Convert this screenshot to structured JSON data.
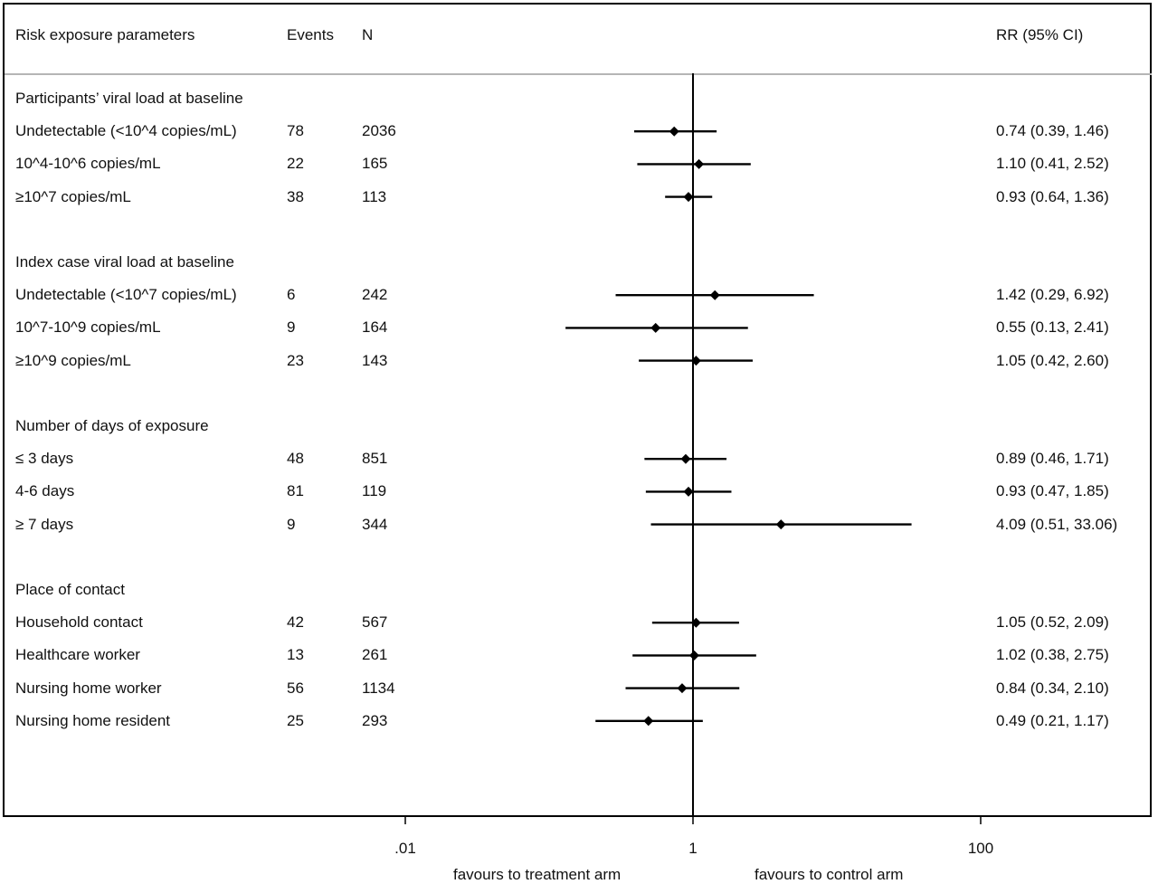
{
  "chart_data": {
    "type": "forest",
    "headers": {
      "label": "Risk exposure parameters",
      "events": "Events",
      "n": "N",
      "rr": "RR (95% CI)"
    },
    "groups": [
      {
        "title": "Participants’ viral load at baseline",
        "rows": [
          {
            "label": "Undetectable (<10^4 copies/mL)",
            "events": "78",
            "n": "2036",
            "rr_text": "0.74 (0.39, 1.46)",
            "rr": 0.74,
            "lo": 0.39,
            "hi": 1.46
          },
          {
            "label": "10^4-10^6 copies/mL",
            "events": "22",
            "n": "165",
            "rr_text": "1.10 (0.41, 2.52)",
            "rr": 1.1,
            "lo": 0.41,
            "hi": 2.52
          },
          {
            "label": "≥10^7 copies/mL",
            "events": "38",
            "n": "113",
            "rr_text": "0.93 (0.64, 1.36)",
            "rr": 0.93,
            "lo": 0.64,
            "hi": 1.36
          }
        ]
      },
      {
        "title": "Index case viral load at baseline",
        "rows": [
          {
            "label": "Undetectable (<10^7 copies/mL)",
            "events": "6",
            "n": "242",
            "rr_text": "1.42 (0.29, 6.92)",
            "rr": 1.42,
            "lo": 0.29,
            "hi": 6.92
          },
          {
            "label": "10^7-10^9 copies/mL",
            "events": "9",
            "n": "164",
            "rr_text": "0.55 (0.13, 2.41)",
            "rr": 0.55,
            "lo": 0.13,
            "hi": 2.41
          },
          {
            "label": "≥10^9 copies/mL",
            "events": "23",
            "n": "143",
            "rr_text": "1.05 (0.42, 2.60)",
            "rr": 1.05,
            "lo": 0.42,
            "hi": 2.6
          }
        ]
      },
      {
        "title": "Number of days of exposure",
        "rows": [
          {
            "label": "≤ 3 days",
            "events": "48",
            "n": "851",
            "rr_text": "0.89 (0.46, 1.71)",
            "rr": 0.89,
            "lo": 0.46,
            "hi": 1.71
          },
          {
            "label": "4-6 days",
            "events": "81",
            "n": "119",
            "rr_text": "0.93 (0.47, 1.85)",
            "rr": 0.93,
            "lo": 0.47,
            "hi": 1.85
          },
          {
            "label": "≥ 7 days",
            "events": "9",
            "n": "344",
            "rr_text": "4.09 (0.51, 33.06)",
            "rr": 4.09,
            "lo": 0.51,
            "hi": 33.06
          }
        ]
      },
      {
        "title": "Place of contact",
        "rows": [
          {
            "label": "Household contact",
            "events": "42",
            "n": "567",
            "rr_text": "1.05 (0.52, 2.09)",
            "rr": 1.05,
            "lo": 0.52,
            "hi": 2.09
          },
          {
            "label": "Healthcare worker",
            "events": "13",
            "n": "261",
            "rr_text": "1.02 (0.38, 2.75)",
            "rr": 1.02,
            "lo": 0.38,
            "hi": 2.75
          },
          {
            "label": "Nursing home worker",
            "events": "56",
            "n": "1134",
            "rr_text": "0.84 (0.34, 2.10)",
            "rr": 0.84,
            "lo": 0.34,
            "hi": 2.1
          },
          {
            "label": "Nursing home resident",
            "events": "25",
            "n": "293",
            "rr_text": "0.49 (0.21, 1.17)",
            "rr": 0.49,
            "lo": 0.21,
            "hi": 1.17
          }
        ]
      }
    ],
    "x_axis": {
      "scale": "log",
      "ticks": [
        0.01,
        1,
        100
      ],
      "tick_labels": [
        ".01",
        "1",
        "100"
      ],
      "reference_line": 1,
      "left_caption": "favours to treatment arm",
      "right_caption": "favours to control arm"
    }
  }
}
